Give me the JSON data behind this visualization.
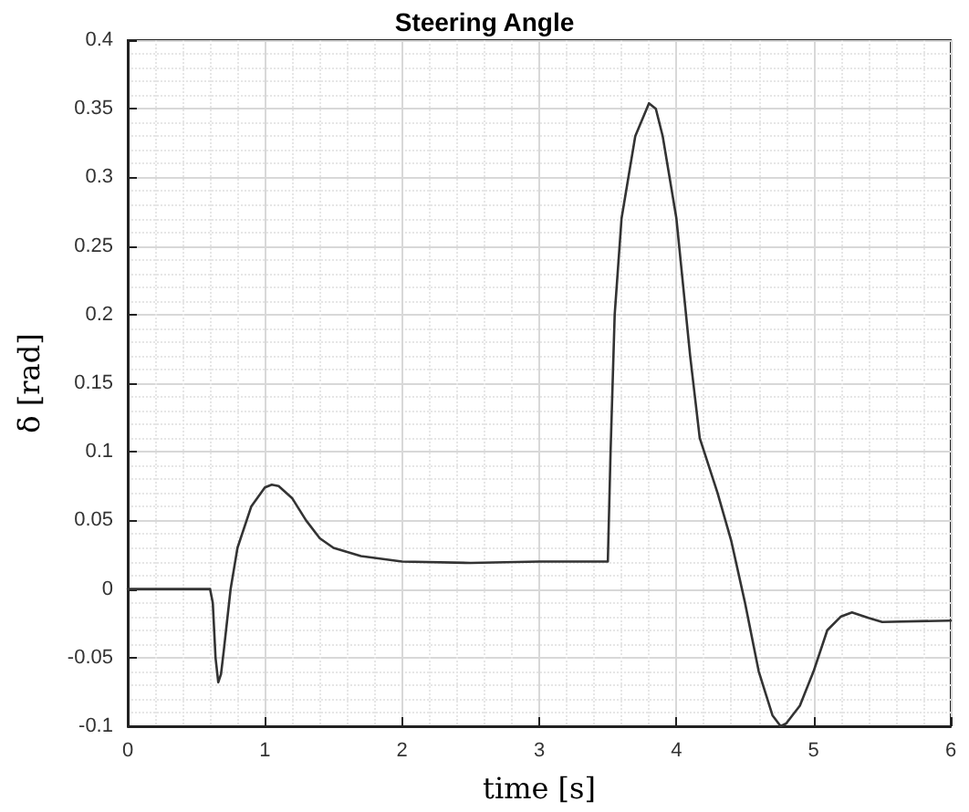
{
  "chart_data": {
    "type": "line",
    "title": "Steering Angle",
    "xlabel": "time [s]",
    "ylabel": "δ [rad]",
    "xlim": [
      0,
      6
    ],
    "xticks": [
      0,
      1,
      2,
      3,
      4,
      5,
      6
    ],
    "ylim": [
      -0.1,
      0.4
    ],
    "yticks": [
      -0.1,
      -0.05,
      0,
      0.05,
      0.1,
      0.15,
      0.2,
      0.25,
      0.3,
      0.35,
      0.4
    ],
    "grid": true,
    "marker": "none",
    "line_style": "solid",
    "series": [
      {
        "color": "#333333",
        "x": [
          0,
          0.6,
          0.62,
          0.64,
          0.66,
          0.68,
          0.7,
          0.75,
          0.8,
          0.9,
          1.0,
          1.05,
          1.1,
          1.2,
          1.3,
          1.4,
          1.5,
          1.7,
          2.0,
          2.5,
          3.0,
          3.5,
          3.52,
          3.55,
          3.6,
          3.7,
          3.8,
          3.85,
          3.9,
          4.0,
          4.1,
          4.17,
          4.3,
          4.4,
          4.5,
          4.6,
          4.7,
          4.76,
          4.8,
          4.9,
          5.0,
          5.1,
          5.2,
          5.28,
          5.4,
          5.5,
          6.0
        ],
        "values": [
          0,
          0,
          -0.01,
          -0.05,
          -0.068,
          -0.062,
          -0.045,
          0.0,
          0.03,
          0.06,
          0.074,
          0.076,
          0.075,
          0.066,
          0.05,
          0.037,
          0.03,
          0.024,
          0.02,
          0.019,
          0.02,
          0.02,
          0.1,
          0.2,
          0.27,
          0.33,
          0.354,
          0.35,
          0.33,
          0.27,
          0.17,
          0.11,
          0.07,
          0.035,
          -0.01,
          -0.06,
          -0.092,
          -0.1,
          -0.098,
          -0.085,
          -0.06,
          -0.03,
          -0.02,
          -0.017,
          -0.021,
          -0.024,
          -0.023
        ]
      }
    ]
  }
}
